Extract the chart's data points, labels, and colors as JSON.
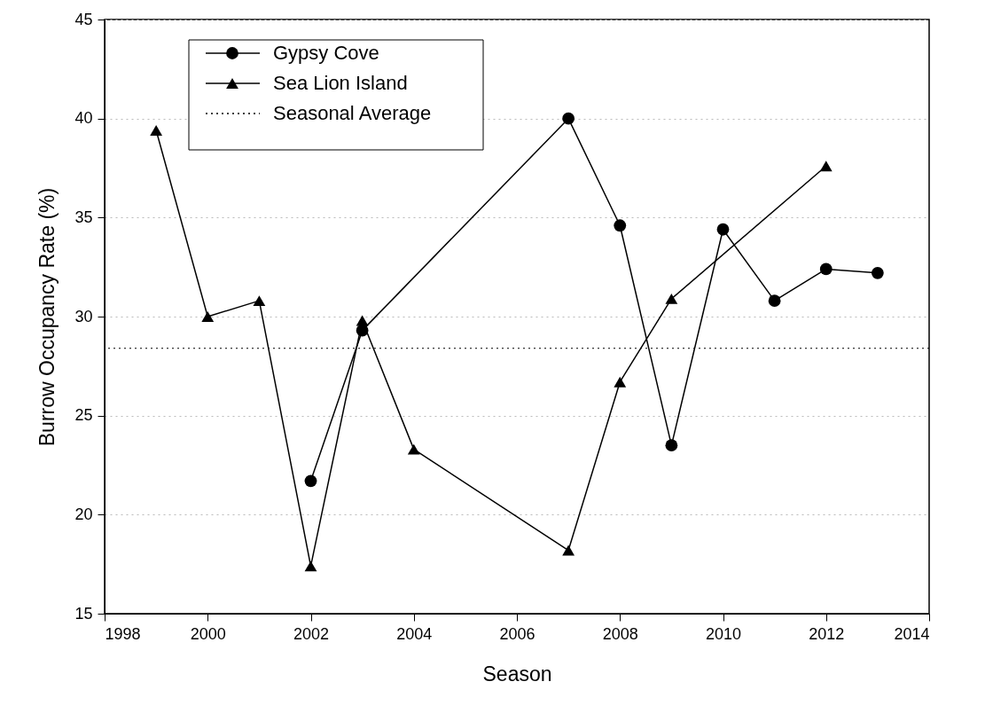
{
  "chart_data": {
    "type": "line",
    "xlabel": "Season",
    "ylabel": "Burrow Occupancy Rate (%)",
    "xlim": [
      1998,
      2014
    ],
    "xticks": [
      1998,
      2000,
      2002,
      2004,
      2006,
      2008,
      2010,
      2012,
      2014
    ],
    "ylim": [
      15,
      45
    ],
    "yticks": [
      15,
      20,
      25,
      30,
      35,
      40,
      45
    ],
    "grid": "y",
    "legend": "top left",
    "line_style": "solid",
    "series": [
      {
        "name": "Gypsy Cove",
        "color": "#000000",
        "marker": "circle",
        "x": [
          2002,
          2003,
          2007,
          2008,
          2009,
          2010,
          2011,
          2012,
          2013
        ],
        "values": [
          21.7,
          29.3,
          40.0,
          34.6,
          23.5,
          34.4,
          30.8,
          32.4,
          32.2
        ]
      },
      {
        "name": "Sea Lion Island",
        "color": "#000000",
        "marker": "triangle",
        "x": [
          1999,
          2000,
          2001,
          2002,
          2003,
          2004,
          2007,
          2008,
          2009,
          2012
        ],
        "values": [
          39.4,
          30.0,
          30.8,
          17.4,
          29.8,
          23.3,
          18.2,
          26.7,
          30.9,
          37.6
        ]
      }
    ],
    "ref_lines": [
      {
        "axis": "y",
        "value": 28.4,
        "label": "Seasonal Average",
        "color": "#000000",
        "line_style": "dotted"
      }
    ]
  }
}
